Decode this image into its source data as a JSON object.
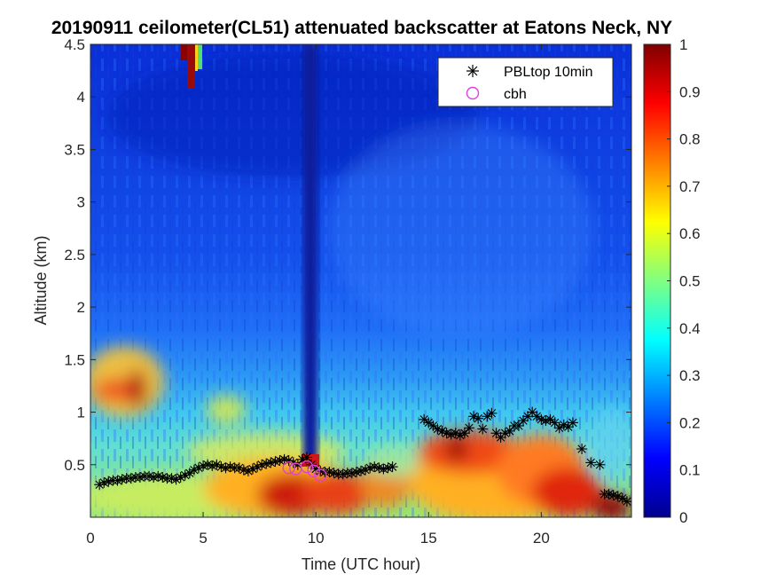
{
  "chart_data": {
    "type": "heatmap",
    "title": "20190911 ceilometer(CL51) attenuated backscatter at Eatons Neck, NY",
    "xlabel": "Time (UTC hour)",
    "ylabel": "Altitude (km)",
    "xlim": [
      0,
      24
    ],
    "ylim": [
      0,
      4.5
    ],
    "clim": [
      0,
      1
    ],
    "colormap": "jet",
    "grid": false,
    "legend_location": "top-right",
    "x_ticks": [
      {
        "value": 0,
        "label": "0"
      },
      {
        "value": 5,
        "label": "5"
      },
      {
        "value": 10,
        "label": "10"
      },
      {
        "value": 15,
        "label": "15"
      },
      {
        "value": 20,
        "label": "20"
      }
    ],
    "y_ticks": [
      {
        "value": 0.5,
        "label": "0.5"
      },
      {
        "value": 1,
        "label": "1"
      },
      {
        "value": 1.5,
        "label": "1.5"
      },
      {
        "value": 2,
        "label": "2"
      },
      {
        "value": 2.5,
        "label": "2.5"
      },
      {
        "value": 3,
        "label": "3"
      },
      {
        "value": 3.5,
        "label": "3.5"
      },
      {
        "value": 4,
        "label": "4"
      },
      {
        "value": 4.5,
        "label": "4.5"
      }
    ],
    "colorbar_ticks": [
      {
        "value": 0,
        "label": "0"
      },
      {
        "value": 0.1,
        "label": "0.1"
      },
      {
        "value": 0.2,
        "label": "0.2"
      },
      {
        "value": 0.3,
        "label": "0.3"
      },
      {
        "value": 0.4,
        "label": "0.4"
      },
      {
        "value": 0.5,
        "label": "0.5"
      },
      {
        "value": 0.6,
        "label": "0.6"
      },
      {
        "value": 0.7,
        "label": "0.7"
      },
      {
        "value": 0.8,
        "label": "0.8"
      },
      {
        "value": 0.9,
        "label": "0.9"
      },
      {
        "value": 1,
        "label": "1"
      }
    ],
    "series": [
      {
        "name": "PBLtop 10min",
        "marker": "asterisk",
        "color": "#000000",
        "x": [
          0.4,
          0.6,
          0.8,
          1.0,
          1.2,
          1.4,
          1.6,
          1.8,
          2.0,
          2.2,
          2.4,
          2.6,
          2.8,
          3.0,
          3.2,
          3.4,
          3.6,
          3.8,
          4.0,
          4.2,
          4.4,
          4.6,
          4.8,
          5.0,
          5.2,
          5.4,
          5.6,
          5.8,
          6.0,
          6.2,
          6.4,
          6.6,
          6.8,
          7.0,
          7.2,
          7.4,
          7.6,
          7.8,
          8.0,
          8.2,
          8.4,
          8.6,
          8.8,
          9.0,
          9.2,
          9.4,
          9.6,
          9.8,
          10.0,
          10.2,
          10.4,
          10.6,
          10.8,
          11.0,
          11.2,
          11.4,
          11.6,
          11.8,
          12.0,
          12.2,
          12.4,
          12.6,
          12.8,
          13.0,
          13.2,
          13.4,
          14.8,
          15.0,
          15.2,
          15.4,
          15.6,
          15.8,
          16.0,
          16.2,
          16.4,
          16.6,
          16.8,
          17.0,
          17.2,
          17.4,
          17.6,
          17.8,
          18.0,
          18.2,
          18.4,
          18.6,
          18.8,
          19.0,
          19.2,
          19.4,
          19.6,
          19.8,
          20.0,
          20.2,
          20.4,
          20.6,
          20.8,
          21.0,
          21.2,
          21.4,
          21.8,
          22.2,
          22.6,
          22.8,
          23.0,
          23.2,
          23.4,
          23.6,
          23.8
        ],
        "y": [
          0.31,
          0.33,
          0.34,
          0.35,
          0.35,
          0.36,
          0.37,
          0.37,
          0.38,
          0.38,
          0.39,
          0.39,
          0.38,
          0.39,
          0.38,
          0.37,
          0.37,
          0.36,
          0.38,
          0.4,
          0.42,
          0.45,
          0.47,
          0.49,
          0.5,
          0.49,
          0.5,
          0.48,
          0.47,
          0.48,
          0.47,
          0.47,
          0.45,
          0.44,
          0.46,
          0.48,
          0.5,
          0.51,
          0.52,
          0.53,
          0.54,
          0.55,
          0.54,
          0.52,
          0.5,
          0.55,
          0.57,
          0.5,
          0.46,
          0.44,
          0.43,
          0.43,
          0.42,
          0.41,
          0.41,
          0.42,
          0.42,
          0.43,
          0.44,
          0.45,
          0.47,
          0.48,
          0.47,
          0.46,
          0.47,
          0.48,
          0.93,
          0.9,
          0.87,
          0.84,
          0.82,
          0.8,
          0.79,
          0.8,
          0.78,
          0.8,
          0.85,
          0.96,
          0.94,
          0.84,
          0.96,
          0.99,
          0.8,
          0.76,
          0.8,
          0.82,
          0.87,
          0.87,
          0.92,
          0.96,
          1.0,
          0.96,
          0.93,
          0.92,
          0.93,
          0.9,
          0.85,
          0.88,
          0.86,
          0.9,
          0.65,
          0.52,
          0.5,
          0.22,
          0.22,
          0.21,
          0.2,
          0.18,
          0.15
        ]
      },
      {
        "name": "cbh",
        "marker": "circle",
        "color": "#e040e0",
        "x": [
          8.8,
          9.1,
          9.6,
          9.9,
          10.2
        ],
        "y": [
          0.47,
          0.46,
          0.48,
          0.44,
          0.4
        ]
      }
    ]
  },
  "colors": {
    "pbl_marker": "#000000",
    "cbh_marker": "#e040e0",
    "axis": "#262626"
  }
}
